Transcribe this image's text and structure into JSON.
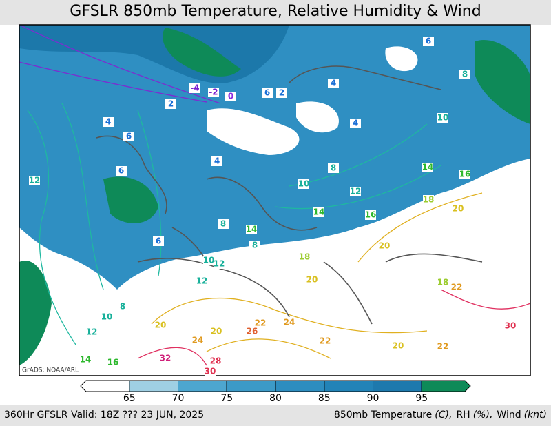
{
  "header": {
    "title": "GFSLR 850mb Temperature, Relative Humidity & Wind"
  },
  "map": {
    "credit": "GrADS: NOAA/ARL",
    "contour_labels": [
      -4,
      -2,
      0,
      2,
      2,
      6,
      6,
      8,
      4,
      4,
      6,
      6,
      4,
      4,
      10,
      8,
      10,
      12,
      14,
      16,
      12,
      14,
      16,
      18,
      20,
      8,
      6,
      14,
      8,
      10,
      12,
      18,
      20,
      20,
      12,
      18,
      22,
      8,
      10,
      12,
      14,
      16,
      20,
      20,
      22,
      24,
      26,
      24,
      22,
      20,
      22,
      30,
      28,
      32,
      30
    ]
  },
  "colorbar": {
    "levels": [
      65,
      70,
      75,
      80,
      85,
      90,
      95
    ],
    "colors": [
      "#ffffff",
      "#9fcfe3",
      "#4da6cf",
      "#3c9ac7",
      "#2d8dbf",
      "#2283b7",
      "#1d79ad",
      "#0e8a58"
    ]
  },
  "footer": {
    "left": "360Hr GFSLR Valid: 18Z ??? 23 JUN, 2025",
    "right": [
      "850mb Temperature",
      "(C),",
      "RH",
      "(%),",
      "Wind",
      "(knt)"
    ]
  }
}
